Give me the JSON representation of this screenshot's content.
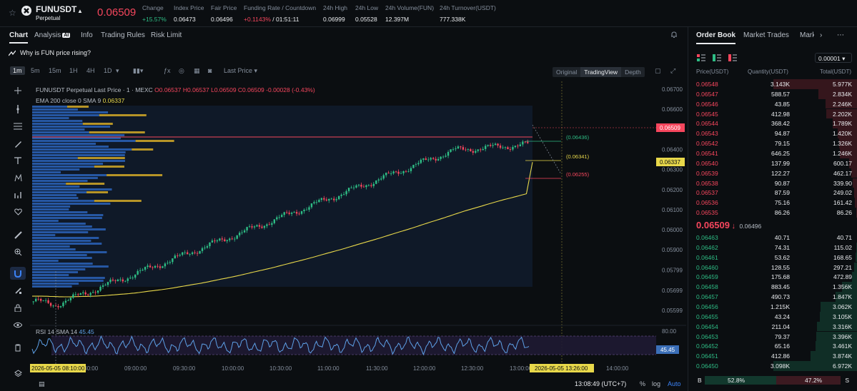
{
  "ticker": {
    "symbol": "FUNUSDT",
    "subtitle": "Perpetual",
    "last_price": "0.06509",
    "stats": [
      {
        "label": "Change",
        "value": "+15.57%",
        "tone": "up"
      },
      {
        "label": "Index Price",
        "value": "0.06473",
        "tone": ""
      },
      {
        "label": "Fair Price",
        "value": "0.06496",
        "tone": ""
      },
      {
        "label": "Funding Rate / Countdown",
        "value": "+0.1143%",
        "value2": "/ 01:51:11",
        "tone": "dn"
      },
      {
        "label": "24h High",
        "value": "0.06999",
        "tone": ""
      },
      {
        "label": "24h Low",
        "value": "0.05528",
        "tone": ""
      },
      {
        "label": "24h Volume(FUN)",
        "value": "12.397M",
        "tone": ""
      },
      {
        "label": "24h Turnover(USDT)",
        "value": "777.338K",
        "tone": ""
      }
    ]
  },
  "tabs": [
    "Chart",
    "Analysis",
    "Info",
    "Trading Rules",
    "Risk Limit"
  ],
  "ai_badge": "AI",
  "question": "Why is FUN price rising?",
  "toolbar": {
    "intervals": [
      "1m",
      "5m",
      "15m",
      "1H",
      "4H",
      "1D"
    ],
    "price_type": "Last Price",
    "views": [
      "Original",
      "TradingView",
      "Depth"
    ]
  },
  "chart": {
    "legend_title": "FUNUSDT Perpetual Last Price · 1 · MEXC",
    "ohlc": {
      "o": "O0.06537",
      "h": "H0.06537",
      "l": "L0.06509",
      "c": "C0.06509",
      "chg": "-0.00028 (-0.43%)"
    },
    "ema_label": "EMA 200 close 0 SMA 9",
    "ema_value": "0.06337",
    "rsi_label": "RSI 14 SMA 14",
    "rsi_value": "45.45",
    "rsi_tag": "45.45",
    "rsi_axis": "80.00",
    "price_axis": [
      "0.06700",
      "0.06600",
      "0.06500",
      "0.06400",
      "0.06300",
      "0.06200",
      "0.06100",
      "0.06000",
      "0.05900",
      "0.05799",
      "0.05699",
      "0.05599"
    ],
    "price_tag": "0.06509",
    "ema_tag": "0.06337",
    "levels": [
      "(0.06436)",
      "(0.06341)",
      "(0.06255)"
    ],
    "time_axis": [
      "08:30:00",
      "09:00:00",
      "09:30:00",
      "10:00:00",
      "10:30:00",
      "11:00:00",
      "11:30:00",
      "12:00:00",
      "12:30:00",
      "13:00:00",
      "14:00:00"
    ],
    "time_left_tag": "2026-05-05  08:10:00",
    "time_right_tag": "2026-05-05  13:26:00"
  },
  "bottom_bar": {
    "clock": "13:08:49 (UTC+7)",
    "percent": "%",
    "log": "log",
    "auto": "Auto"
  },
  "orderbook": {
    "tabs": [
      "Order Book",
      "Market Trades",
      "Mark"
    ],
    "precision": "0.00001",
    "headers": [
      "Price(USDT)",
      "Quantity(USDT)",
      "Total(USDT)"
    ],
    "asks": [
      {
        "price": "0.06548",
        "qty": "3.143K",
        "total": "5.977K",
        "depth": 1.0
      },
      {
        "price": "0.06547",
        "qty": "588.57",
        "total": "2.834K",
        "depth": 0.47
      },
      {
        "price": "0.06546",
        "qty": "43.85",
        "total": "2.246K",
        "depth": 0.38
      },
      {
        "price": "0.06545",
        "qty": "412.98",
        "total": "2.202K",
        "depth": 0.37
      },
      {
        "price": "0.06544",
        "qty": "368.42",
        "total": "1.789K",
        "depth": 0.3
      },
      {
        "price": "0.06543",
        "qty": "94.87",
        "total": "1.420K",
        "depth": 0.24
      },
      {
        "price": "0.06542",
        "qty": "79.15",
        "total": "1.326K",
        "depth": 0.22
      },
      {
        "price": "0.06541",
        "qty": "646.25",
        "total": "1.246K",
        "depth": 0.21
      },
      {
        "price": "0.06540",
        "qty": "137.99",
        "total": "600.17",
        "depth": 0.1
      },
      {
        "price": "0.06539",
        "qty": "122.27",
        "total": "462.17",
        "depth": 0.08
      },
      {
        "price": "0.06538",
        "qty": "90.87",
        "total": "339.90",
        "depth": 0.06
      },
      {
        "price": "0.06537",
        "qty": "87.59",
        "total": "249.02",
        "depth": 0.04
      },
      {
        "price": "0.06536",
        "qty": "75.16",
        "total": "161.42",
        "depth": 0.03
      },
      {
        "price": "0.06535",
        "qty": "86.26",
        "total": "86.26",
        "depth": 0.015
      }
    ],
    "mid_price": "0.06509",
    "mid_arrow": "↓",
    "mid_sub": "0.06496",
    "bids": [
      {
        "price": "0.06463",
        "qty": "40.71",
        "total": "40.71",
        "depth": 0.006
      },
      {
        "price": "0.06462",
        "qty": "74.31",
        "total": "115.02",
        "depth": 0.017
      },
      {
        "price": "0.06461",
        "qty": "53.62",
        "total": "168.65",
        "depth": 0.024
      },
      {
        "price": "0.06460",
        "qty": "128.55",
        "total": "297.21",
        "depth": 0.043
      },
      {
        "price": "0.06459",
        "qty": "175.68",
        "total": "472.89",
        "depth": 0.068
      },
      {
        "price": "0.06458",
        "qty": "883.45",
        "total": "1.356K",
        "depth": 0.19
      },
      {
        "price": "0.06457",
        "qty": "490.73",
        "total": "1.847K",
        "depth": 0.26
      },
      {
        "price": "0.06456",
        "qty": "1.215K",
        "total": "3.062K",
        "depth": 0.44
      },
      {
        "price": "0.06455",
        "qty": "43.24",
        "total": "3.105K",
        "depth": 0.45
      },
      {
        "price": "0.06454",
        "qty": "211.04",
        "total": "3.316K",
        "depth": 0.48
      },
      {
        "price": "0.06453",
        "qty": "79.37",
        "total": "3.396K",
        "depth": 0.49
      },
      {
        "price": "0.06452",
        "qty": "65.16",
        "total": "3.461K",
        "depth": 0.5
      },
      {
        "price": "0.06451",
        "qty": "412.86",
        "total": "3.874K",
        "depth": 0.56
      },
      {
        "price": "0.06450",
        "qty": "3.098K",
        "total": "6.972K",
        "depth": 1.0
      }
    ],
    "buy_ratio_label": "B",
    "buy_ratio": "52.8%",
    "sell_ratio": "47.2%",
    "sell_ratio_label": "S",
    "buy_fraction": 0.528
  },
  "colors": {
    "up": "#2ebd85",
    "down": "#f6465d",
    "ema": "#e8d84a",
    "rsi": "#5ea1e8",
    "profile_blue": "#2a63b8",
    "profile_yellow": "#c9a227"
  }
}
